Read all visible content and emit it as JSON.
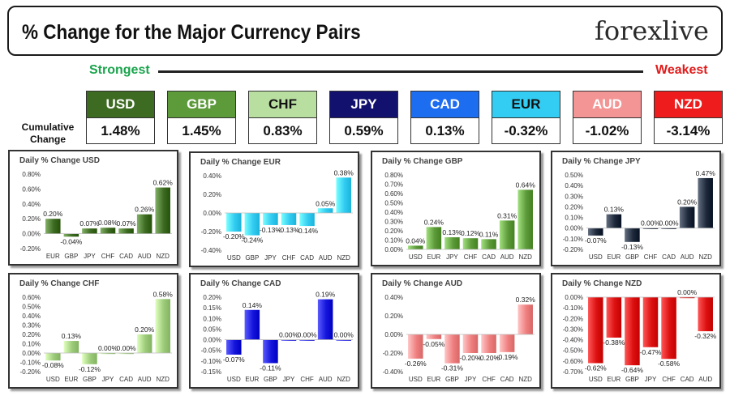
{
  "header": {
    "title": "% Change for the Major Currency Pairs",
    "brand": "forexlive"
  },
  "ranking": {
    "strongest_label": "Strongest",
    "weakest_label": "Weakest",
    "cumulative_label": "Cumulative Change",
    "currencies": [
      {
        "code": "USD",
        "value": "1.48%",
        "bg": "#3d6b22",
        "fg": "#ffffff"
      },
      {
        "code": "GBP",
        "value": "1.45%",
        "bg": "#5c9a3a",
        "fg": "#ffffff"
      },
      {
        "code": "CHF",
        "value": "0.83%",
        "bg": "#b8dea0",
        "fg": "#111111"
      },
      {
        "code": "JPY",
        "value": "0.59%",
        "bg": "#12126e",
        "fg": "#ffffff"
      },
      {
        "code": "CAD",
        "value": "0.13%",
        "bg": "#1c6df0",
        "fg": "#ffffff"
      },
      {
        "code": "EUR",
        "value": "-0.32%",
        "bg": "#33ccf2",
        "fg": "#111111"
      },
      {
        "code": "AUD",
        "value": "-1.02%",
        "bg": "#f49595",
        "fg": "#ffffff"
      },
      {
        "code": "NZD",
        "value": "-3.14%",
        "bg": "#ee1c1c",
        "fg": "#ffffff"
      }
    ]
  },
  "chart_data": [
    {
      "type": "bar",
      "title": "Daily % Change USD",
      "categories": [
        "EUR",
        "GBP",
        "JPY",
        "CHF",
        "CAD",
        "AUD",
        "NZD"
      ],
      "values": [
        0.2,
        -0.04,
        0.07,
        0.08,
        0.07,
        0.26,
        0.62
      ],
      "labels": [
        "0.20%",
        "-0.04%",
        "0.07%",
        "0.08%",
        "0.07%",
        "0.26%",
        "0.62%"
      ],
      "yticks": [
        -0.2,
        0,
        0.2,
        0.4,
        0.6,
        0.8
      ],
      "ytick_labels": [
        "-0.20%",
        "0.00%",
        "0.20%",
        "0.40%",
        "0.60%",
        "0.80%"
      ],
      "ylim": [
        -0.2,
        0.8
      ],
      "color": "#3d6b22"
    },
    {
      "type": "bar",
      "title": "Daily % Change EUR",
      "categories": [
        "USD",
        "GBP",
        "JPY",
        "CHF",
        "CAD",
        "AUD",
        "NZD"
      ],
      "values": [
        -0.2,
        -0.24,
        -0.13,
        -0.13,
        -0.14,
        0.05,
        0.38
      ],
      "labels": [
        "-0.20%",
        "-0.24%",
        "-0.13%",
        "-0.13%",
        "-0.14%",
        "0.05%",
        "0.38%"
      ],
      "yticks": [
        -0.4,
        -0.2,
        0,
        0.2,
        0.4
      ],
      "ytick_labels": [
        "-0.40%",
        "-0.20%",
        "0.00%",
        "0.20%",
        "0.40%"
      ],
      "ylim": [
        -0.4,
        0.4
      ],
      "color": "#33ccf2"
    },
    {
      "type": "bar",
      "title": "Daily % Change GBP",
      "categories": [
        "USD",
        "EUR",
        "JPY",
        "CHF",
        "CAD",
        "AUD",
        "NZD"
      ],
      "values": [
        0.04,
        0.24,
        0.13,
        0.12,
        0.11,
        0.31,
        0.64
      ],
      "labels": [
        "0.04%",
        "0.24%",
        "0.13%",
        "0.12%",
        "0.11%",
        "0.31%",
        "0.64%"
      ],
      "yticks": [
        0,
        0.1,
        0.2,
        0.3,
        0.4,
        0.5,
        0.6,
        0.7,
        0.8
      ],
      "ytick_labels": [
        "0.00%",
        "0.10%",
        "0.20%",
        "0.30%",
        "0.40%",
        "0.50%",
        "0.60%",
        "0.70%",
        "0.80%"
      ],
      "ylim": [
        0,
        0.8
      ],
      "color": "#5c9a3a"
    },
    {
      "type": "bar",
      "title": "Daily % Change JPY",
      "categories": [
        "USD",
        "EUR",
        "GBP",
        "CHF",
        "CAD",
        "AUD",
        "NZD"
      ],
      "values": [
        -0.07,
        0.13,
        -0.13,
        0.0,
        0.0,
        0.2,
        0.47
      ],
      "labels": [
        "-0.07%",
        "0.13%",
        "-0.13%",
        "0.00%",
        "0.00%",
        "0.20%",
        "0.47%"
      ],
      "yticks": [
        -0.2,
        -0.1,
        0,
        0.1,
        0.2,
        0.3,
        0.4,
        0.5
      ],
      "ytick_labels": [
        "-0.20%",
        "-0.10%",
        "0.00%",
        "0.10%",
        "0.20%",
        "0.30%",
        "0.40%",
        "0.50%"
      ],
      "ylim": [
        -0.2,
        0.5
      ],
      "color": "#1e2a3c"
    },
    {
      "type": "bar",
      "title": "Daily % Change CHF",
      "categories": [
        "USD",
        "EUR",
        "GBP",
        "JPY",
        "CAD",
        "AUD",
        "NZD"
      ],
      "values": [
        -0.08,
        0.13,
        -0.12,
        0.0,
        0.0,
        0.2,
        0.58
      ],
      "labels": [
        "-0.08%",
        "0.13%",
        "-0.12%",
        "0.00%",
        "0.00%",
        "0.20%",
        "0.58%"
      ],
      "yticks": [
        -0.2,
        -0.1,
        0,
        0.1,
        0.2,
        0.3,
        0.4,
        0.5,
        0.6
      ],
      "ytick_labels": [
        "-0.20%",
        "-0.10%",
        "0.00%",
        "0.10%",
        "0.20%",
        "0.30%",
        "0.40%",
        "0.50%",
        "0.60%"
      ],
      "ylim": [
        -0.2,
        0.6
      ],
      "color": "#9ccc7a"
    },
    {
      "type": "bar",
      "title": "Daily % Change CAD",
      "categories": [
        "USD",
        "EUR",
        "GBP",
        "JPY",
        "CHF",
        "AUD",
        "NZD"
      ],
      "values": [
        -0.07,
        0.14,
        -0.11,
        0.0,
        0.0,
        0.19,
        0.0
      ],
      "labels": [
        "-0.07%",
        "0.14%",
        "-0.11%",
        "0.00%",
        "0.00%",
        "0.19%",
        "0.00%"
      ],
      "yticks": [
        -0.15,
        -0.1,
        -0.05,
        0,
        0.05,
        0.1,
        0.15,
        0.2
      ],
      "ytick_labels": [
        "-0.15%",
        "-0.10%",
        "-0.05%",
        "0.00%",
        "0.05%",
        "0.10%",
        "0.15%",
        "0.20%"
      ],
      "ylim": [
        -0.15,
        0.2
      ],
      "color": "#1515dc"
    },
    {
      "type": "bar",
      "title": "Daily % Change AUD",
      "categories": [
        "USD",
        "EUR",
        "GBP",
        "JPY",
        "CHF",
        "CAD",
        "NZD"
      ],
      "values": [
        -0.26,
        -0.05,
        -0.31,
        -0.2,
        -0.2,
        -0.19,
        0.32
      ],
      "labels": [
        "-0.26%",
        "-0.05%",
        "-0.31%",
        "-0.20%",
        "-0.20%",
        "-0.19%",
        "0.32%"
      ],
      "yticks": [
        -0.4,
        -0.2,
        0,
        0.2,
        0.4
      ],
      "ytick_labels": [
        "-0.40%",
        "-0.20%",
        "0.00%",
        "0.20%",
        "0.40%"
      ],
      "ylim": [
        -0.4,
        0.4
      ],
      "color": "#f08080"
    },
    {
      "type": "bar",
      "title": "Daily % Change NZD",
      "categories": [
        "USD",
        "EUR",
        "GBP",
        "JPY",
        "CHF",
        "CAD",
        "AUD"
      ],
      "values": [
        -0.62,
        -0.38,
        -0.64,
        -0.47,
        -0.58,
        0.0,
        -0.32
      ],
      "labels": [
        "-0.62%",
        "-0.38%",
        "-0.64%",
        "-0.47%",
        "-0.58%",
        "0.00%",
        "-0.32%"
      ],
      "yticks": [
        -0.7,
        -0.6,
        -0.5,
        -0.4,
        -0.3,
        -0.2,
        -0.1,
        0
      ],
      "ytick_labels": [
        "-0.70%",
        "-0.60%",
        "-0.50%",
        "-0.40%",
        "-0.30%",
        "-0.20%",
        "-0.10%",
        "0.00%"
      ],
      "ylim": [
        -0.7,
        0
      ],
      "color": "#dd1111"
    }
  ]
}
